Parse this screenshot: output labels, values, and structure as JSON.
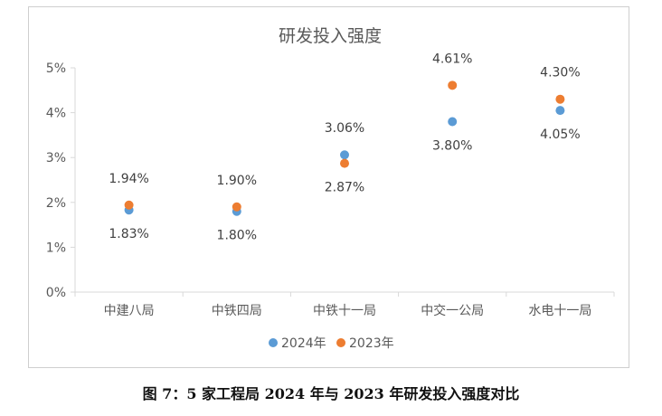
{
  "caption": "图 7：5 家工程局 2024 年与 2023 年研发投入强度对比",
  "colors": {
    "2024年": "#5B9BD5",
    "2023年": "#ED7D31",
    "axis": "#d9d9d9",
    "text": "#595959"
  },
  "chart_data": {
    "type": "scatter",
    "title": "研发投入强度",
    "categories": [
      "中建八局",
      "中铁四局",
      "中铁十一局",
      "中交一公局",
      "水电十一局"
    ],
    "series": [
      {
        "name": "2024年",
        "values": [
          1.83,
          1.8,
          3.06,
          3.8,
          4.05
        ],
        "labels": [
          "1.83%",
          "1.80%",
          "3.06%",
          "3.80%",
          "4.05%"
        ]
      },
      {
        "name": "2023年",
        "values": [
          1.94,
          1.9,
          2.87,
          4.61,
          4.3
        ],
        "labels": [
          "1.94%",
          "1.90%",
          "2.87%",
          "4.61%",
          "4.30%"
        ]
      }
    ],
    "ylim": [
      0,
      5
    ],
    "yticks": [
      "0%",
      "1%",
      "2%",
      "3%",
      "4%",
      "5%"
    ],
    "grid": false,
    "legend": "bottom"
  }
}
